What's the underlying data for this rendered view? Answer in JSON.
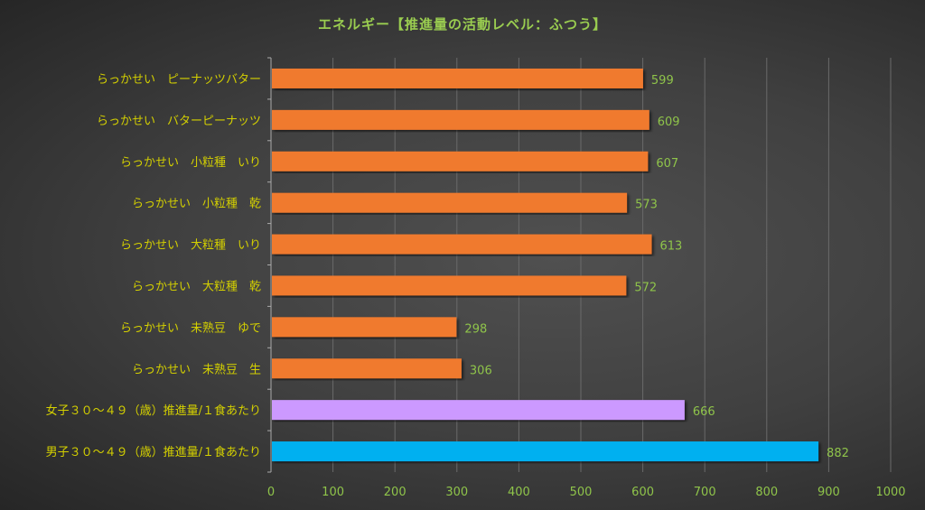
{
  "chart_data": {
    "type": "bar",
    "orientation": "horizontal",
    "title": "エネルギー【推進量の活動レベル：ふつう】",
    "categories": [
      "らっかせい　ピーナッツバター",
      "らっかせい　バターピーナッツ",
      "らっかせい　小粒種　いり",
      "らっかせい　小粒種　乾",
      "らっかせい　大粒種　いり",
      "らっかせい　大粒種　乾",
      "らっかせい　未熟豆　ゆで",
      "らっかせい　未熟豆　生",
      "女子３０～４９（歳）推進量/１食あたり",
      "男子３０～４９（歳）推進量/１食あたり"
    ],
    "values": [
      599,
      609,
      607,
      573,
      613,
      572,
      298,
      306,
      666,
      882
    ],
    "bar_colors": [
      "#f07a2e",
      "#f07a2e",
      "#f07a2e",
      "#f07a2e",
      "#f07a2e",
      "#f07a2e",
      "#f07a2e",
      "#f07a2e",
      "#cc99ff",
      "#00b0f0"
    ],
    "xlim": [
      0,
      1000
    ],
    "xticks": [
      0,
      100,
      200,
      300,
      400,
      500,
      600,
      700,
      800,
      900,
      1000
    ],
    "grid": true,
    "data_labels": true,
    "colors": {
      "title": "#9acd50",
      "category_label": "#d4d000",
      "value_label": "#8fc44a",
      "tick_label": "#8fc44a"
    }
  }
}
